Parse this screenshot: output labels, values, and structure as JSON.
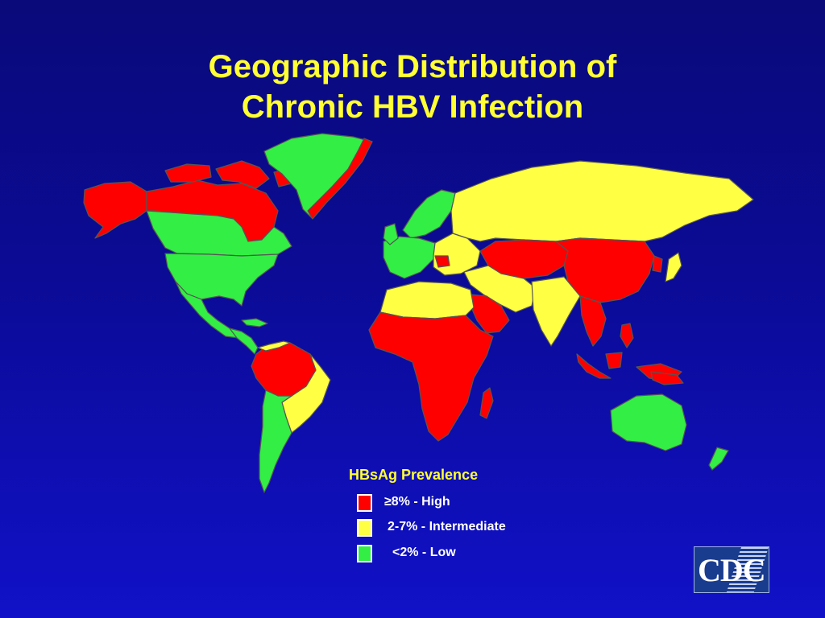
{
  "title": {
    "line1": "Geographic Distribution of",
    "line2": "Chronic HBV Infection"
  },
  "legend": {
    "title": "HBsAg Prevalence",
    "items": [
      {
        "label": "≥8% - High",
        "color": "#ff0000"
      },
      {
        "label": "2-7% - Intermediate",
        "color": "#ffff44"
      },
      {
        "label": "<2% - Low",
        "color": "#33ee44"
      }
    ]
  },
  "colors": {
    "background": "#0b0b96",
    "title": "#ffff33",
    "high": "#ff0000",
    "intermediate": "#ffff44",
    "low": "#33ee44",
    "border": "#555555"
  },
  "map_regions": [
    {
      "region": "Alaska",
      "prevalence": "high"
    },
    {
      "region": "Northern Canada",
      "prevalence": "high"
    },
    {
      "region": "Greenland",
      "prevalence": "low"
    },
    {
      "region": "Coastal Greenland",
      "prevalence": "high"
    },
    {
      "region": "Canada",
      "prevalence": "low"
    },
    {
      "region": "United States",
      "prevalence": "low"
    },
    {
      "region": "Mexico",
      "prevalence": "low"
    },
    {
      "region": "Central America",
      "prevalence": "low"
    },
    {
      "region": "Amazon Basin",
      "prevalence": "high"
    },
    {
      "region": "Brazil",
      "prevalence": "intermediate"
    },
    {
      "region": "Southern South America",
      "prevalence": "low"
    },
    {
      "region": "Scandinavia",
      "prevalence": "low"
    },
    {
      "region": "Western Europe",
      "prevalence": "low"
    },
    {
      "region": "Eastern Europe",
      "prevalence": "intermediate"
    },
    {
      "region": "Russia",
      "prevalence": "intermediate"
    },
    {
      "region": "North Africa",
      "prevalence": "intermediate"
    },
    {
      "region": "Sub-Saharan Africa",
      "prevalence": "high"
    },
    {
      "region": "Madagascar",
      "prevalence": "high"
    },
    {
      "region": "Middle East",
      "prevalence": "intermediate"
    },
    {
      "region": "Arabian Peninsula",
      "prevalence": "high"
    },
    {
      "region": "Central Asia",
      "prevalence": "high"
    },
    {
      "region": "China",
      "prevalence": "high"
    },
    {
      "region": "India",
      "prevalence": "intermediate"
    },
    {
      "region": "Southeast Asia",
      "prevalence": "high"
    },
    {
      "region": "Japan",
      "prevalence": "intermediate"
    },
    {
      "region": "Indonesia",
      "prevalence": "high"
    },
    {
      "region": "Philippines",
      "prevalence": "high"
    },
    {
      "region": "Australia",
      "prevalence": "low"
    },
    {
      "region": "New Zealand",
      "prevalence": "low"
    }
  ],
  "logo": {
    "text": "CDC"
  }
}
